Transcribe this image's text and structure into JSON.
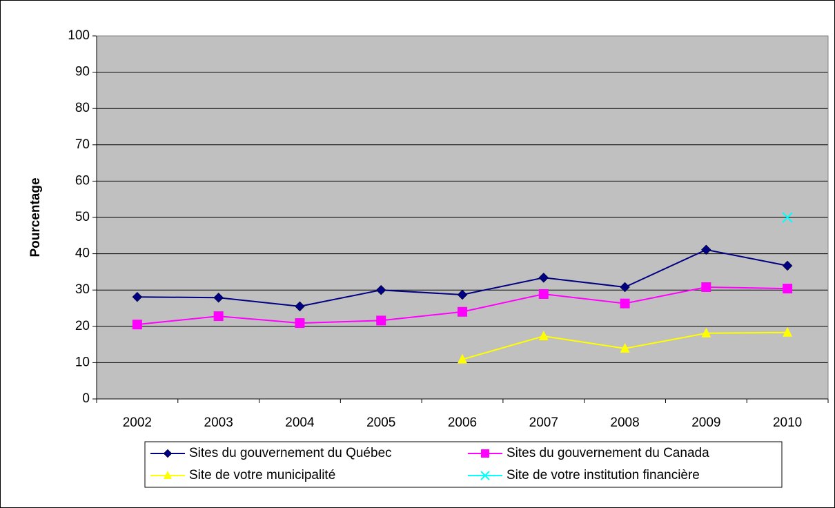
{
  "chart_data": {
    "type": "line",
    "y_label": "Pourcentage",
    "categories": [
      "2002",
      "2003",
      "2004",
      "2005",
      "2006",
      "2007",
      "2008",
      "2009",
      "2010"
    ],
    "series": [
      {
        "name": "Sites du gouvernement du Québec",
        "color": "#000080",
        "marker": "diamond",
        "values": [
          28.1,
          27.9,
          25.5,
          30.0,
          28.7,
          33.4,
          30.8,
          41.1,
          36.7
        ]
      },
      {
        "name": "Sites du gouvernement du Canada",
        "color": "#ff00ff",
        "marker": "square",
        "values": [
          20.5,
          22.8,
          20.9,
          21.6,
          24.0,
          28.9,
          26.3,
          30.8,
          30.4
        ]
      },
      {
        "name": "Site de votre municipalité",
        "color": "#ffff00",
        "marker": "triangle",
        "values": [
          null,
          null,
          null,
          null,
          10.9,
          17.3,
          13.9,
          18.1,
          18.3
        ]
      },
      {
        "name": "Site de votre institution financière",
        "color": "#00ffff",
        "marker": "x",
        "values": [
          null,
          null,
          null,
          null,
          null,
          null,
          null,
          null,
          50.0
        ]
      }
    ],
    "ylim": [
      0,
      100
    ],
    "yticks": [
      0,
      10,
      20,
      30,
      40,
      50,
      60,
      70,
      80,
      90,
      100
    ],
    "grid": true,
    "plot_background": "#c0c0c0",
    "legend": "bottom"
  }
}
